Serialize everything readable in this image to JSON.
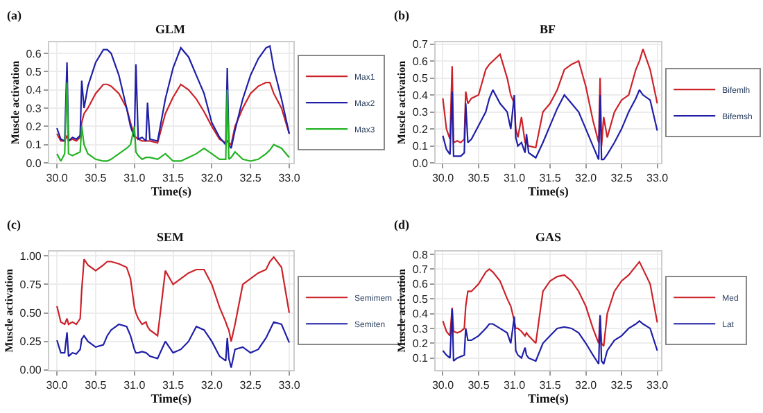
{
  "chart_data": [
    {
      "type": "line",
      "title": "GLM",
      "xlabel": "Time(s)",
      "ylabel": "Muscle activation",
      "annotations": [
        "(a)"
      ],
      "grid": true,
      "legend": "right",
      "x": [
        30.0,
        30.05,
        30.1,
        30.13,
        30.15,
        30.2,
        30.25,
        30.3,
        30.32,
        30.35,
        30.4,
        30.5,
        30.6,
        30.65,
        30.7,
        30.8,
        30.9,
        30.95,
        31.0,
        31.02,
        31.05,
        31.1,
        31.15,
        31.17,
        31.2,
        31.3,
        31.4,
        31.5,
        31.6,
        31.7,
        31.8,
        31.9,
        32.0,
        32.1,
        32.18,
        32.2,
        32.22,
        32.25,
        32.3,
        32.4,
        32.5,
        32.6,
        32.7,
        32.75,
        32.8,
        32.9,
        33.0
      ],
      "xlim": [
        29.9,
        33.05
      ],
      "xticks": [
        {
          "value": 30,
          "label": "30.0"
        },
        30.5,
        {
          "value": 31,
          "label": "31.0"
        },
        31.5,
        {
          "value": 32,
          "label": "32.0"
        },
        32.5,
        {
          "value": 33,
          "label": "33.0"
        }
      ],
      "ylim": [
        0,
        0.66
      ],
      "yticks": [
        {
          "value": 0,
          "label": "0.0"
        },
        0.1,
        0.2,
        0.3,
        0.4,
        0.5,
        0.6
      ],
      "series": [
        {
          "name": "Max1",
          "color": "#cc2229",
          "values": [
            0.16,
            0.12,
            0.12,
            0.15,
            0.12,
            0.13,
            0.12,
            0.14,
            0.22,
            0.27,
            0.3,
            0.38,
            0.43,
            0.43,
            0.42,
            0.38,
            0.3,
            0.22,
            0.15,
            0.14,
            0.13,
            0.12,
            0.12,
            0.12,
            0.12,
            0.11,
            0.27,
            0.36,
            0.43,
            0.4,
            0.35,
            0.28,
            0.2,
            0.13,
            0.11,
            0.12,
            0.11,
            0.1,
            0.2,
            0.3,
            0.38,
            0.42,
            0.44,
            0.44,
            0.38,
            0.3,
            0.16
          ]
        },
        {
          "name": "Max2",
          "color": "#1f1fa8",
          "values": [
            0.19,
            0.13,
            0.12,
            0.55,
            0.12,
            0.14,
            0.13,
            0.15,
            0.45,
            0.3,
            0.42,
            0.55,
            0.62,
            0.62,
            0.6,
            0.48,
            0.3,
            0.2,
            0.14,
            0.54,
            0.13,
            0.14,
            0.12,
            0.33,
            0.13,
            0.12,
            0.35,
            0.52,
            0.63,
            0.58,
            0.48,
            0.38,
            0.22,
            0.14,
            0.1,
            0.52,
            0.1,
            0.08,
            0.18,
            0.35,
            0.48,
            0.57,
            0.63,
            0.64,
            0.52,
            0.35,
            0.16
          ]
        },
        {
          "name": "Max3",
          "color": "#22b322",
          "values": [
            0.05,
            0.01,
            0.05,
            0.44,
            0.05,
            0.04,
            0.05,
            0.06,
            0.2,
            0.1,
            0.05,
            0.02,
            0.01,
            0.01,
            0.02,
            0.05,
            0.08,
            0.1,
            0.2,
            0.06,
            0.04,
            0.02,
            0.03,
            0.03,
            0.03,
            0.02,
            0.05,
            0.01,
            0.01,
            0.03,
            0.05,
            0.08,
            0.05,
            0.02,
            0.02,
            0.4,
            0.02,
            0.03,
            0.06,
            0.02,
            0.01,
            0.02,
            0.05,
            0.07,
            0.1,
            0.08,
            0.03
          ]
        }
      ]
    },
    {
      "type": "line",
      "title": "BF",
      "xlabel": "Time(s)",
      "ylabel": "Muscle activation",
      "annotations": [
        "(b)"
      ],
      "grid": true,
      "legend": "right",
      "x": [
        30.0,
        30.05,
        30.1,
        30.13,
        30.15,
        30.2,
        30.25,
        30.3,
        30.32,
        30.35,
        30.4,
        30.5,
        30.6,
        30.65,
        30.7,
        30.8,
        30.9,
        30.95,
        31.0,
        31.02,
        31.05,
        31.1,
        31.15,
        31.17,
        31.2,
        31.3,
        31.4,
        31.5,
        31.6,
        31.7,
        31.8,
        31.9,
        32.0,
        32.1,
        32.18,
        32.2,
        32.22,
        32.25,
        32.3,
        32.4,
        32.5,
        32.6,
        32.7,
        32.75,
        32.8,
        32.9,
        33.0
      ],
      "xlim": [
        29.9,
        33.05
      ],
      "xticks": [
        {
          "value": 30,
          "label": "30.0"
        },
        30.5,
        {
          "value": 31,
          "label": "31.0"
        },
        31.5,
        {
          "value": 32,
          "label": "32.0"
        },
        32.5,
        {
          "value": 33,
          "label": "33.0"
        }
      ],
      "ylim": [
        0,
        0.71
      ],
      "yticks": [
        {
          "value": 0,
          "label": "0.0"
        },
        0.1,
        0.2,
        0.3,
        0.4,
        0.5,
        0.6,
        0.7
      ],
      "series": [
        {
          "name": "Bifemlh",
          "color": "#cc2229",
          "values": [
            0.38,
            0.2,
            0.14,
            0.57,
            0.12,
            0.13,
            0.12,
            0.14,
            0.42,
            0.35,
            0.38,
            0.4,
            0.55,
            0.58,
            0.6,
            0.64,
            0.5,
            0.4,
            0.35,
            0.2,
            0.15,
            0.27,
            0.12,
            0.12,
            0.1,
            0.09,
            0.3,
            0.35,
            0.43,
            0.55,
            0.58,
            0.6,
            0.45,
            0.25,
            0.12,
            0.5,
            0.1,
            0.27,
            0.15,
            0.3,
            0.37,
            0.4,
            0.55,
            0.6,
            0.67,
            0.55,
            0.35
          ]
        },
        {
          "name": "Bifemsh",
          "color": "#1f1fa8",
          "values": [
            0.16,
            0.08,
            0.05,
            0.42,
            0.04,
            0.04,
            0.04,
            0.06,
            0.35,
            0.12,
            0.14,
            0.22,
            0.3,
            0.38,
            0.43,
            0.35,
            0.3,
            0.2,
            0.4,
            0.15,
            0.1,
            0.12,
            0.06,
            0.17,
            0.06,
            0.03,
            0.12,
            0.22,
            0.32,
            0.4,
            0.35,
            0.3,
            0.2,
            0.1,
            0.02,
            0.4,
            0.02,
            0.02,
            0.05,
            0.12,
            0.2,
            0.3,
            0.38,
            0.43,
            0.4,
            0.37,
            0.19
          ]
        }
      ]
    },
    {
      "type": "line",
      "title": "SEM",
      "xlabel": "Time(s)",
      "ylabel": "Muscle activation",
      "annotations": [
        "(c)"
      ],
      "grid": true,
      "legend": "right",
      "x": [
        30.0,
        30.05,
        30.1,
        30.13,
        30.15,
        30.2,
        30.25,
        30.3,
        30.32,
        30.35,
        30.4,
        30.5,
        30.6,
        30.65,
        30.7,
        30.8,
        30.9,
        30.95,
        31.0,
        31.02,
        31.05,
        31.1,
        31.15,
        31.17,
        31.2,
        31.3,
        31.4,
        31.5,
        31.6,
        31.7,
        31.8,
        31.9,
        32.0,
        32.1,
        32.18,
        32.2,
        32.22,
        32.25,
        32.3,
        32.4,
        32.5,
        32.6,
        32.7,
        32.75,
        32.8,
        32.9,
        33.0
      ],
      "xlim": [
        29.9,
        33.05
      ],
      "xticks": [
        {
          "value": 30,
          "label": "30.0"
        },
        30.5,
        {
          "value": 31,
          "label": "31.0"
        },
        31.5,
        {
          "value": 32,
          "label": "32.0"
        },
        32.5,
        {
          "value": 33,
          "label": "33.0"
        }
      ],
      "ylim": [
        0,
        1.04
      ],
      "yticks": [
        {
          "value": 0,
          "label": "0.00"
        },
        0.25,
        {
          "value": 0.5,
          "label": "0.50"
        },
        0.75,
        {
          "value": 1,
          "label": "1.00"
        }
      ],
      "series": [
        {
          "name": "Semimem",
          "color": "#cc2229",
          "values": [
            0.56,
            0.42,
            0.4,
            0.45,
            0.4,
            0.42,
            0.4,
            0.45,
            0.7,
            0.97,
            0.92,
            0.87,
            0.92,
            0.95,
            0.95,
            0.93,
            0.9,
            0.8,
            0.55,
            0.5,
            0.45,
            0.4,
            0.42,
            0.38,
            0.35,
            0.3,
            0.87,
            0.75,
            0.8,
            0.85,
            0.88,
            0.88,
            0.75,
            0.55,
            0.42,
            0.38,
            0.35,
            0.25,
            0.4,
            0.75,
            0.8,
            0.85,
            0.88,
            0.95,
            0.99,
            0.9,
            0.5
          ]
        },
        {
          "name": "Semiten",
          "color": "#1f1fa8",
          "values": [
            0.26,
            0.15,
            0.15,
            0.33,
            0.12,
            0.15,
            0.14,
            0.18,
            0.27,
            0.3,
            0.25,
            0.2,
            0.22,
            0.3,
            0.35,
            0.4,
            0.38,
            0.3,
            0.18,
            0.15,
            0.15,
            0.16,
            0.15,
            0.14,
            0.12,
            0.1,
            0.25,
            0.15,
            0.18,
            0.25,
            0.38,
            0.35,
            0.25,
            0.12,
            0.08,
            0.28,
            0.1,
            0.02,
            0.18,
            0.2,
            0.15,
            0.18,
            0.28,
            0.35,
            0.42,
            0.4,
            0.24
          ]
        }
      ]
    },
    {
      "type": "line",
      "title": "GAS",
      "xlabel": "Time(s)",
      "ylabel": "Muscle activation",
      "annotations": [
        "(d)"
      ],
      "grid": true,
      "legend": "right",
      "x": [
        30.0,
        30.05,
        30.1,
        30.13,
        30.15,
        30.2,
        30.25,
        30.3,
        30.32,
        30.35,
        30.4,
        30.5,
        30.6,
        30.65,
        30.7,
        30.8,
        30.9,
        30.95,
        31.0,
        31.02,
        31.05,
        31.1,
        31.15,
        31.17,
        31.2,
        31.3,
        31.4,
        31.5,
        31.6,
        31.7,
        31.8,
        31.9,
        32.0,
        32.1,
        32.18,
        32.2,
        32.22,
        32.25,
        32.3,
        32.4,
        32.5,
        32.6,
        32.7,
        32.75,
        32.8,
        32.9,
        33.0
      ],
      "xlim": [
        29.9,
        33.05
      ],
      "xticks": [
        {
          "value": 30,
          "label": "30.0"
        },
        30.5,
        {
          "value": 31,
          "label": "31.0"
        },
        31.5,
        {
          "value": 32,
          "label": "32.0"
        },
        32.5,
        {
          "value": 33,
          "label": "33.0"
        }
      ],
      "ylim": [
        0.02,
        0.82
      ],
      "yticks": [
        0.1,
        0.2,
        0.3,
        0.4,
        0.5,
        0.6,
        0.7,
        0.8
      ],
      "series": [
        {
          "name": "Med",
          "color": "#cc2229",
          "values": [
            0.35,
            0.28,
            0.25,
            0.44,
            0.28,
            0.27,
            0.28,
            0.3,
            0.45,
            0.55,
            0.55,
            0.6,
            0.68,
            0.7,
            0.68,
            0.62,
            0.5,
            0.45,
            0.35,
            0.3,
            0.3,
            0.28,
            0.25,
            0.27,
            0.25,
            0.2,
            0.55,
            0.62,
            0.65,
            0.66,
            0.62,
            0.55,
            0.45,
            0.3,
            0.2,
            0.38,
            0.2,
            0.18,
            0.4,
            0.55,
            0.62,
            0.66,
            0.72,
            0.75,
            0.7,
            0.6,
            0.34
          ]
        },
        {
          "name": "Lat",
          "color": "#1f1fa8",
          "values": [
            0.15,
            0.12,
            0.1,
            0.43,
            0.08,
            0.1,
            0.11,
            0.12,
            0.3,
            0.22,
            0.22,
            0.25,
            0.3,
            0.33,
            0.33,
            0.3,
            0.27,
            0.2,
            0.38,
            0.15,
            0.12,
            0.1,
            0.17,
            0.12,
            0.1,
            0.08,
            0.2,
            0.25,
            0.3,
            0.31,
            0.3,
            0.27,
            0.2,
            0.12,
            0.06,
            0.39,
            0.08,
            0.06,
            0.15,
            0.22,
            0.25,
            0.3,
            0.33,
            0.35,
            0.33,
            0.3,
            0.15
          ]
        }
      ]
    }
  ]
}
